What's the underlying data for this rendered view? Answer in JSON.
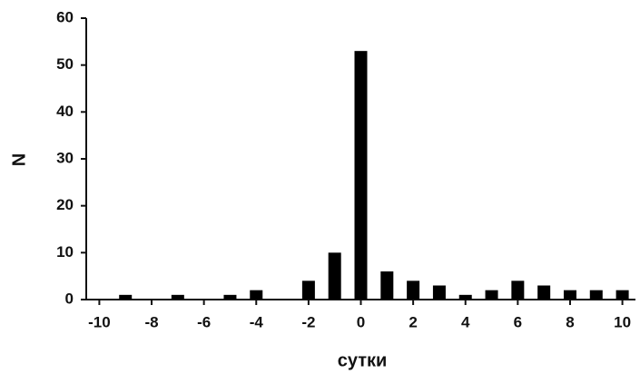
{
  "chart_data": {
    "type": "bar",
    "x_label": "сутки",
    "y_label": "N",
    "x": [
      -9,
      -7,
      -5,
      -4,
      -2,
      -1,
      0,
      1,
      2,
      3,
      4,
      5,
      6,
      7,
      8,
      9,
      10
    ],
    "values": [
      1,
      1,
      1,
      2,
      4,
      10,
      53,
      6,
      4,
      3,
      1,
      2,
      4,
      3,
      2,
      2,
      2
    ],
    "color": "#000000",
    "xlim": [
      -10.5,
      10.5
    ],
    "xticks": [
      -10,
      -8,
      -6,
      -4,
      -2,
      0,
      2,
      4,
      6,
      8,
      10
    ],
    "ylim": [
      0,
      60
    ],
    "yticks": [
      0,
      10,
      20,
      30,
      40,
      50,
      60
    ],
    "grid": false
  }
}
